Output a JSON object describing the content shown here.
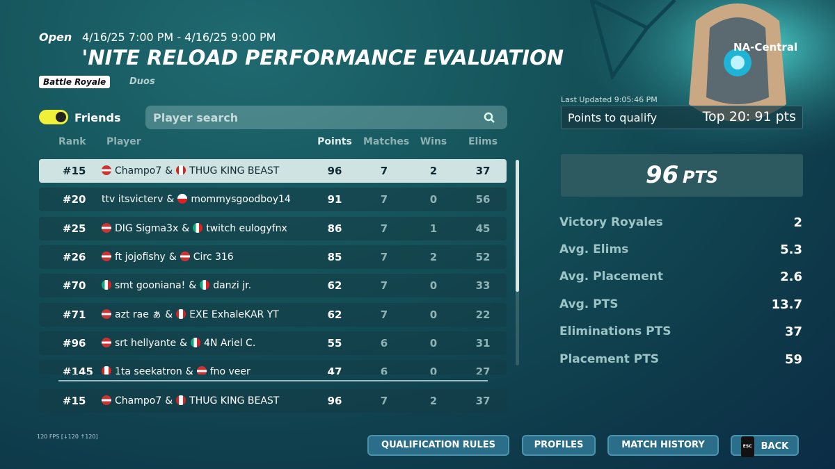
{
  "header": {
    "status": "Open",
    "time_range": "4/16/25 7:00 PM - 4/16/25 9:00 PM",
    "title": "'NITE RELOAD PERFORMANCE EVALUATION",
    "mode_badge": "Battle Royale",
    "team_mode": "Duos"
  },
  "region": "NA-Central",
  "filters": {
    "friends": "Friends",
    "search_placeholder": "Player search"
  },
  "table": {
    "columns": [
      "Rank",
      "Player",
      "Points",
      "Matches",
      "Wins",
      "Elims"
    ],
    "separator": "&",
    "rows": [
      {
        "rank": "#15",
        "player1": "Champo7",
        "player2": "THUG KING BEAST",
        "points": 96,
        "matches": 7,
        "wins": 2,
        "elims": 37
      },
      {
        "rank": "#20",
        "player1": "ttv itsvicterv",
        "player2": "mommysgoodboy14",
        "points": 91,
        "matches": 7,
        "wins": 0,
        "elims": 56
      },
      {
        "rank": "#25",
        "player1": "DIG Sigma3x",
        "player2": "twitch eulogyfnx",
        "points": 86,
        "matches": 7,
        "wins": 1,
        "elims": 45
      },
      {
        "rank": "#26",
        "player1": "ft jojofishy",
        "player2": "Circ 316",
        "points": 85,
        "matches": 7,
        "wins": 2,
        "elims": 52
      },
      {
        "rank": "#70",
        "player1": "smt gooniana!",
        "player2": "danzi jr.",
        "points": 62,
        "matches": 7,
        "wins": 0,
        "elims": 33
      },
      {
        "rank": "#71",
        "player1": "azt rae ぁ",
        "player2": "EXE ExhaleKAR YT",
        "points": 62,
        "matches": 7,
        "wins": 0,
        "elims": 22
      },
      {
        "rank": "#96",
        "player1": "srt hellyante",
        "player2": "4N Ariel C.",
        "points": 55,
        "matches": 6,
        "wins": 0,
        "elims": 31
      },
      {
        "rank": "#145",
        "player1": "1ta seekatron",
        "player2": "fno veer",
        "points": 47,
        "matches": 6,
        "wins": 0,
        "elims": 27
      }
    ],
    "pinned_row": {
      "rank": "#15",
      "player1": "Champo7",
      "player2": "THUG KING BEAST",
      "points": 96,
      "matches": 7,
      "wins": 2,
      "elims": 37
    }
  },
  "last_updated": "Last Updated 9:05:46 PM",
  "qualify": {
    "label": "Points to qualify",
    "value": "Top 20: 91 pts"
  },
  "summary": {
    "points": 96,
    "unit": "PTS"
  },
  "stats": [
    {
      "label": "Victory Royales",
      "value": 2
    },
    {
      "label": "Avg. Elims",
      "value": 5.3
    },
    {
      "label": "Avg. Placement",
      "value": 2.6
    },
    {
      "label": "Avg. PTS",
      "value": 13.7
    },
    {
      "label": "Eliminations PTS",
      "value": 37
    },
    {
      "label": "Placement PTS",
      "value": 59
    }
  ],
  "fps": "120 FPS [↓120 ↑120]",
  "buttons": [
    "QUALIFICATION RULES",
    "PROFILES",
    "MATCH HISTORY",
    "BACK"
  ],
  "back_key": "ESC"
}
